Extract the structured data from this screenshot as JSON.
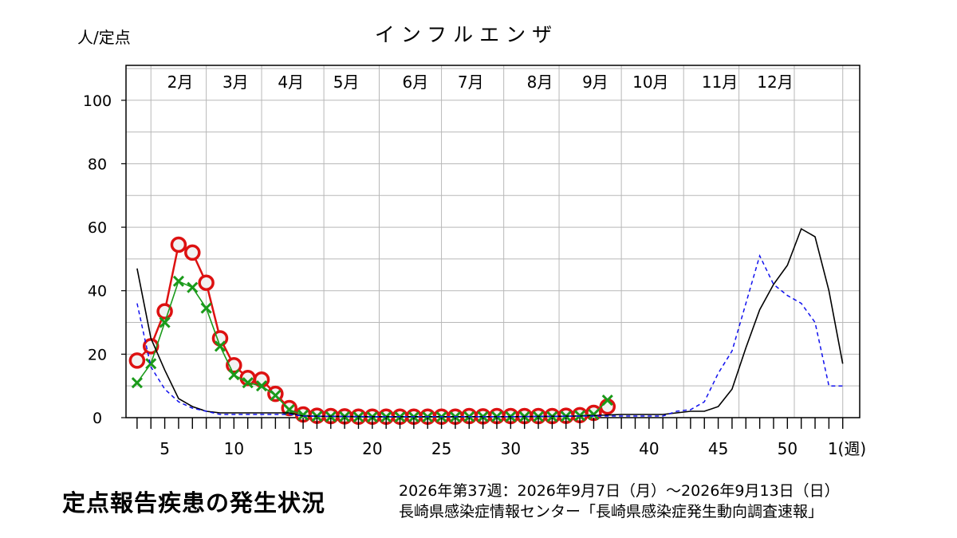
{
  "chart_data": {
    "type": "line",
    "title": "インフルエンザ",
    "ylabel": "人/定点",
    "xunit_label": "1(週)",
    "ylim": [
      0,
      110
    ],
    "y_ticks": [
      0,
      20,
      40,
      60,
      80,
      100
    ],
    "x_ticks": [
      {
        "week": 5,
        "label": "5"
      },
      {
        "week": 10,
        "label": "10"
      },
      {
        "week": 15,
        "label": "15"
      },
      {
        "week": 20,
        "label": "20"
      },
      {
        "week": 25,
        "label": "25"
      },
      {
        "week": 30,
        "label": "30"
      },
      {
        "week": 35,
        "label": "35"
      },
      {
        "week": 40,
        "label": "40"
      },
      {
        "week": 45,
        "label": "45"
      },
      {
        "week": 50,
        "label": "50"
      }
    ],
    "month_labels": [
      {
        "label": "2月",
        "week": 6
      },
      {
        "label": "3月",
        "week": 10
      },
      {
        "label": "4月",
        "week": 14
      },
      {
        "label": "5月",
        "week": 18
      },
      {
        "label": "6月",
        "week": 23
      },
      {
        "label": "7月",
        "week": 27
      },
      {
        "label": "8月",
        "week": 32
      },
      {
        "label": "9月",
        "week": 36
      },
      {
        "label": "10月",
        "week": 40
      },
      {
        "label": "11月",
        "week": 45
      },
      {
        "label": "12月",
        "week": 49
      }
    ],
    "grid": true,
    "series": [
      {
        "style": "red-circles",
        "color": "#dd1111",
        "x": [
          3,
          4,
          5,
          6,
          7,
          8,
          9,
          10,
          11,
          12,
          13,
          14,
          15,
          16,
          17,
          18,
          19,
          20,
          21,
          22,
          23,
          24,
          25,
          26,
          27,
          28,
          29,
          30,
          31,
          32,
          33,
          34,
          35,
          36,
          37
        ],
        "y": [
          18,
          22.5,
          33.5,
          54.5,
          52,
          42.5,
          25,
          16.5,
          12.5,
          12,
          7.5,
          3,
          1,
          0.6,
          0.5,
          0.4,
          0.3,
          0.3,
          0.3,
          0.3,
          0.3,
          0.3,
          0.3,
          0.3,
          0.5,
          0.4,
          0.5,
          0.5,
          0.5,
          0.5,
          0.5,
          0.6,
          0.8,
          1.5,
          3.5
        ]
      },
      {
        "style": "green-crosses",
        "color": "#1a9a1a",
        "x": [
          3,
          4,
          5,
          6,
          7,
          8,
          9,
          10,
          11,
          12,
          13,
          14,
          15,
          16,
          17,
          18,
          19,
          20,
          21,
          22,
          23,
          24,
          25,
          26,
          27,
          28,
          29,
          30,
          31,
          32,
          33,
          34,
          35,
          36,
          37
        ],
        "y": [
          11,
          17,
          30,
          43,
          41,
          34.5,
          22.5,
          13.5,
          11,
          10,
          7,
          2.5,
          0.8,
          0.4,
          0.3,
          0.3,
          0.2,
          0.2,
          0.2,
          0.2,
          0.2,
          0.2,
          0.2,
          0.2,
          0.3,
          0.3,
          0.3,
          0.3,
          0.3,
          0.3,
          0.3,
          0.4,
          0.6,
          1,
          5.5
        ]
      },
      {
        "style": "black-line",
        "color": "#000000",
        "x": [
          3,
          4,
          5,
          6,
          7,
          8,
          9,
          10,
          11,
          12,
          13,
          14,
          15,
          20,
          25,
          30,
          35,
          38,
          40,
          41,
          42,
          43,
          44,
          45,
          46,
          47,
          48,
          49,
          50,
          51,
          52,
          53,
          54
        ],
        "y": [
          47,
          25,
          15,
          6,
          3.5,
          2,
          1.5,
          1.5,
          1.5,
          1.5,
          1.5,
          1.5,
          0.5,
          0.3,
          0.3,
          0.3,
          0.5,
          1,
          1,
          1,
          1.5,
          2,
          2,
          3.5,
          9,
          22,
          34,
          42,
          48,
          59.5,
          57,
          40,
          17
        ]
      },
      {
        "style": "blue-dashed",
        "color": "#1111ee",
        "x": [
          3,
          4,
          5,
          6,
          7,
          8,
          9,
          10,
          11,
          12,
          13,
          14,
          15,
          20,
          25,
          30,
          35,
          38,
          40,
          41,
          42,
          43,
          44,
          45,
          46,
          47,
          48,
          49,
          50,
          51,
          52,
          53,
          54
        ],
        "y": [
          36,
          16,
          9,
          5,
          3,
          2,
          1,
          1,
          1,
          1,
          1,
          1,
          0.5,
          0.3,
          0.3,
          0.3,
          0.5,
          0.5,
          0.5,
          0.5,
          2,
          2.5,
          5,
          14,
          21,
          36,
          51,
          42,
          38.5,
          36,
          30,
          10,
          10
        ]
      }
    ]
  },
  "footer": {
    "title": "定点報告疾患の発生状況",
    "period": "2026年第37週：2026年9月7日（月）〜2026年9月13日（日）",
    "source": "長崎県感染症情報センター「長崎県感染症発生動向調査速報」"
  }
}
